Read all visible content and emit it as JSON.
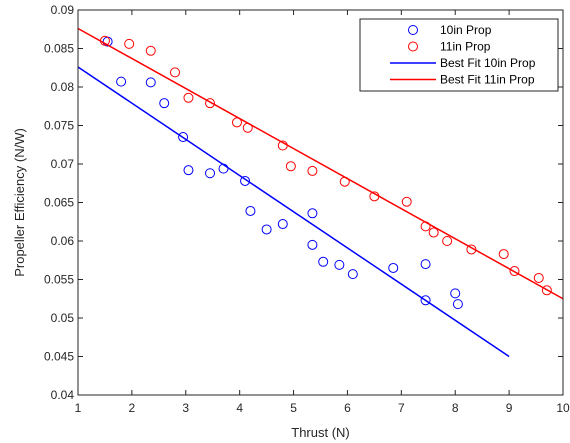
{
  "chart_data": {
    "type": "scatter",
    "xlabel": "Thrust (N)",
    "ylabel": "Propeller Efficiency (N/W)",
    "xlim": [
      1,
      10
    ],
    "ylim": [
      0.04,
      0.09
    ],
    "xticks": [
      "1",
      "2",
      "3",
      "4",
      "5",
      "6",
      "7",
      "8",
      "9",
      "10"
    ],
    "yticks": [
      "0.04",
      "0.045",
      "0.05",
      "0.055",
      "0.06",
      "0.065",
      "0.07",
      "0.075",
      "0.08",
      "0.085",
      "0.09"
    ],
    "grid": false,
    "legend_position": "top-right",
    "series": [
      {
        "name": "10in Prop",
        "kind": "markers",
        "marker": "circle",
        "color": "#0000ff",
        "points": [
          [
            1.55,
            0.0859
          ],
          [
            1.8,
            0.0807
          ],
          [
            2.35,
            0.0806
          ],
          [
            2.6,
            0.0779
          ],
          [
            2.95,
            0.0735
          ],
          [
            3.05,
            0.0692
          ],
          [
            3.45,
            0.0688
          ],
          [
            3.7,
            0.0694
          ],
          [
            4.1,
            0.0678
          ],
          [
            4.2,
            0.0639
          ],
          [
            4.5,
            0.0615
          ],
          [
            4.8,
            0.0622
          ],
          [
            5.35,
            0.0636
          ],
          [
            5.35,
            0.0595
          ],
          [
            5.55,
            0.0573
          ],
          [
            5.85,
            0.0569
          ],
          [
            6.1,
            0.0557
          ],
          [
            6.85,
            0.0565
          ],
          [
            7.45,
            0.057
          ],
          [
            7.45,
            0.0523
          ],
          [
            8.0,
            0.0532
          ],
          [
            8.05,
            0.0518
          ]
        ]
      },
      {
        "name": "11in Prop",
        "kind": "markers",
        "marker": "circle",
        "color": "#ff0000",
        "points": [
          [
            1.5,
            0.086
          ],
          [
            1.95,
            0.0856
          ],
          [
            2.35,
            0.0847
          ],
          [
            2.8,
            0.0819
          ],
          [
            3.05,
            0.0786
          ],
          [
            3.45,
            0.0779
          ],
          [
            3.95,
            0.0754
          ],
          [
            4.15,
            0.0747
          ],
          [
            4.8,
            0.0724
          ],
          [
            4.95,
            0.0697
          ],
          [
            5.35,
            0.0691
          ],
          [
            5.95,
            0.0677
          ],
          [
            6.5,
            0.0658
          ],
          [
            7.1,
            0.0651
          ],
          [
            7.45,
            0.0619
          ],
          [
            7.6,
            0.0611
          ],
          [
            7.85,
            0.06
          ],
          [
            8.3,
            0.0589
          ],
          [
            8.9,
            0.0583
          ],
          [
            9.1,
            0.0561
          ],
          [
            9.55,
            0.0552
          ],
          [
            9.7,
            0.0536
          ]
        ]
      },
      {
        "name": "Best Fit 10in Prop",
        "kind": "line",
        "color": "#0000ff",
        "points": [
          [
            1,
            0.0826
          ],
          [
            9,
            0.045
          ]
        ]
      },
      {
        "name": "Best Fit 11in Prop",
        "kind": "line",
        "color": "#ff0000",
        "points": [
          [
            1,
            0.0876
          ],
          [
            10,
            0.0525
          ]
        ]
      }
    ]
  }
}
